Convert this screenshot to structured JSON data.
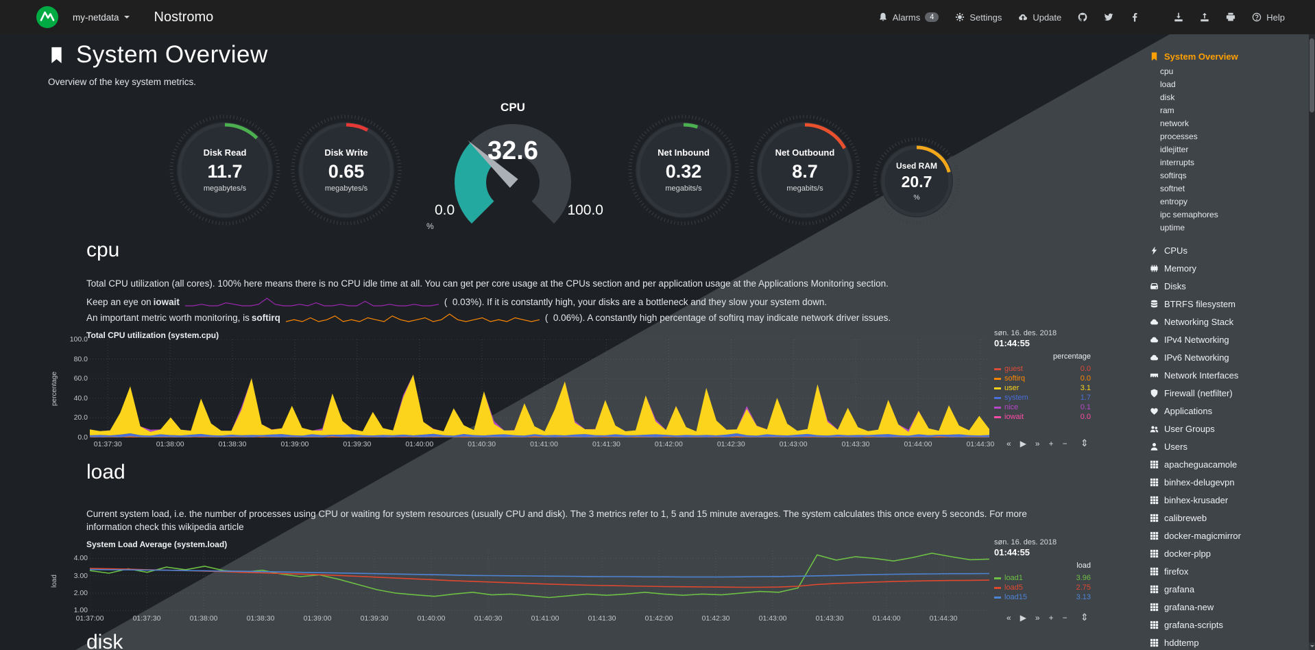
{
  "navbar": {
    "hostname": "my-netdata",
    "brand": "Nostromo",
    "alarms_label": "Alarms",
    "alarms_count": "4",
    "settings_label": "Settings",
    "update_label": "Update",
    "help_label": "Help"
  },
  "page": {
    "title": "System Overview",
    "subtitle": "Overview of the key system metrics."
  },
  "gauges": {
    "disk_read": {
      "title": "Disk Read",
      "value": "11.7",
      "unit": "megabytes/s",
      "color": "#4caf50",
      "frac": 0.125
    },
    "disk_write": {
      "title": "Disk Write",
      "value": "0.65",
      "unit": "megabytes/s",
      "color": "#e53935",
      "frac": 0.078
    },
    "cpu": {
      "title": "CPU",
      "value": "32.6",
      "min": "0.0",
      "max": "100.0",
      "unit": "%",
      "color": "#23a9a0",
      "frac": 0.326
    },
    "net_inbound": {
      "title": "Net Inbound",
      "value": "0.32",
      "unit": "megabits/s",
      "color": "#4caf50",
      "frac": 0.05
    },
    "net_outbound": {
      "title": "Net Outbound",
      "value": "8.7",
      "unit": "megabits/s",
      "color": "#e8502e",
      "frac": 0.17
    },
    "used_ram": {
      "title": "Used RAM",
      "value": "20.7",
      "unit": "%",
      "color": "#f3a71b",
      "frac": 0.207
    }
  },
  "cpu_section": {
    "heading": "cpu",
    "description": "Total CPU utilization (all cores). 100% here means there is no CPU idle time at all. You can get per core usage at the CPUs section and per application usage at the Applications Monitoring section.",
    "iowait_prefix": "Keep an eye on",
    "iowait_word": "iowait",
    "iowait_suffix": "(  0.03%). If it is constantly high, your disks are a bottleneck and they slow your system down.",
    "softirq_prefix": "An important metric worth monitoring, is",
    "softirq_word": "softirq",
    "softirq_suffix": "(  0.06%). A constantly high percentage of softirq may indicate network driver issues."
  },
  "load_section": {
    "heading": "load",
    "description": "Current system load, i.e. the number of processes using CPU or waiting for system resources (usually CPU and disk). The 3 metrics refer to 1, 5 and 15 minute averages. The system calculates this once every 5 seconds. For more information check ",
    "link_text": "this wikipedia article"
  },
  "disk_section": {
    "heading": "disk"
  },
  "chart_controls": {
    "skip_back": "«",
    "play": "▶",
    "skip_forward": "»",
    "zoom_in": "+",
    "zoom_out": "−",
    "resize": "⇕"
  },
  "chart_data": [
    {
      "id": "system_cpu",
      "type": "area",
      "title": "Total CPU utilization (system.cpu)",
      "date": "søn. 16. des. 2018",
      "time": "01:44:55",
      "legend_header": "percentage",
      "ylabel": "percentage",
      "ylim": [
        0,
        100
      ],
      "yticks": [
        0,
        20,
        40,
        60,
        80,
        100
      ],
      "ytick_labels": [
        "0.0",
        "20.0",
        "40.0",
        "60.0",
        "80.0",
        "100.0"
      ],
      "xtick_labels": [
        "01:37:30",
        "01:38:00",
        "01:38:30",
        "01:39:00",
        "01:39:30",
        "01:40:00",
        "01:40:30",
        "01:41:00",
        "01:41:30",
        "01:42:00",
        "01:42:30",
        "01:43:00",
        "01:43:30",
        "01:44:00",
        "01:44:30"
      ],
      "xtick_range": [
        0.02,
        0.99
      ],
      "stack_order": [
        "guest",
        "softirq",
        "system",
        "user",
        "nice",
        "iowait"
      ],
      "series": [
        {
          "name": "guest",
          "value": "0.0",
          "color": "#dd4b39",
          "values": [
            0,
            0,
            0,
            0,
            0.5,
            0,
            0,
            0,
            0,
            0,
            0,
            0.4,
            0,
            0,
            0,
            0,
            0,
            0.3,
            0,
            0
          ]
        },
        {
          "name": "softirq",
          "value": "0.0",
          "color": "#ff8700",
          "values": [
            0.4,
            0.3,
            0.5,
            0.3,
            0.6,
            0.4,
            0.3,
            0.5,
            0.4,
            0.3
          ]
        },
        {
          "name": "user",
          "value": "3.1",
          "color": "#fbd41b",
          "values": [
            6,
            4,
            5,
            22,
            48,
            9,
            4,
            5,
            18,
            6,
            4,
            36,
            12,
            5,
            4,
            26,
            58,
            11,
            5,
            6,
            30,
            8,
            4,
            5,
            42,
            14,
            5,
            4,
            24,
            7,
            5,
            38,
            62,
            13,
            5,
            4,
            28,
            9,
            5,
            45,
            11,
            4,
            5,
            33,
            8,
            4,
            26,
            55,
            12,
            5,
            6,
            36,
            9,
            4,
            5,
            40,
            13,
            5,
            30,
            8,
            4,
            48,
            15,
            5,
            4,
            27,
            10,
            5,
            38,
            12,
            4,
            5,
            52,
            14,
            5,
            28,
            8,
            4,
            5,
            35,
            11,
            4,
            24,
            7,
            4,
            30,
            9,
            5,
            20,
            6
          ]
        },
        {
          "name": "system",
          "value": "1.7",
          "color": "#4a6fd8",
          "values": [
            1.8,
            2.2,
            1.6,
            2.6,
            3.1,
            1.9,
            1.5,
            2.7,
            2.0,
            1.7,
            2.4,
            2.9,
            1.8,
            1.6,
            2.2
          ]
        },
        {
          "name": "nice",
          "value": "0.1",
          "color": "#b647c8",
          "values": [
            0,
            0,
            0,
            0,
            0,
            0,
            2.2,
            0,
            0,
            0,
            0,
            0,
            0,
            0,
            0,
            2.8,
            0,
            0,
            0,
            0,
            0,
            0,
            0,
            1.8,
            0
          ]
        },
        {
          "name": "iowait",
          "value": "0.0",
          "color": "#ff4ca7",
          "values": [
            0,
            0,
            0.2,
            0,
            0,
            0,
            0,
            0
          ]
        }
      ]
    },
    {
      "id": "system_load",
      "type": "line",
      "title": "System Load Average (system.load)",
      "date": "søn. 16. des. 2018",
      "time": "01:44:55",
      "legend_header": "load",
      "ylabel": "load",
      "ylim": [
        0.9,
        4.45
      ],
      "yticks": [
        1,
        2,
        3,
        4
      ],
      "ytick_labels": [
        "1.00",
        "2.00",
        "3.00",
        "4.00"
      ],
      "xtick_labels": [
        "01:37:00",
        "01:37:30",
        "01:38:00",
        "01:38:30",
        "01:39:00",
        "01:39:30",
        "01:40:00",
        "01:40:30",
        "01:41:00",
        "01:41:30",
        "01:42:00",
        "01:42:30",
        "01:43:00",
        "01:43:30",
        "01:44:00",
        "01:44:30"
      ],
      "xtick_range": [
        0.0,
        0.949
      ],
      "series": [
        {
          "name": "load1",
          "value": "3.96",
          "color": "#6dc043",
          "values": [
            3.3,
            3.15,
            3.4,
            3.2,
            3.5,
            3.35,
            3.55,
            3.3,
            3.2,
            3.32,
            3.1,
            2.95,
            3.05,
            2.8,
            2.5,
            2.2,
            2.0,
            1.9,
            1.82,
            1.95,
            2.05,
            1.9,
            1.95,
            1.85,
            1.75,
            1.85,
            1.95,
            1.88,
            1.95,
            2.05,
            1.95,
            1.88,
            1.95,
            1.9,
            2.0,
            2.1,
            2.05,
            2.3,
            4.2,
            3.9,
            4.1,
            4.0,
            3.85,
            4.05,
            4.3,
            4.1,
            3.92,
            3.96
          ]
        },
        {
          "name": "load5",
          "value": "2.75",
          "color": "#e0482e",
          "values": [
            3.42,
            3.4,
            3.38,
            3.35,
            3.32,
            3.3,
            3.27,
            3.24,
            3.2,
            3.17,
            3.13,
            3.1,
            3.06,
            3.02,
            2.97,
            2.92,
            2.87,
            2.82,
            2.77,
            2.72,
            2.68,
            2.64,
            2.6,
            2.56,
            2.52,
            2.49,
            2.46,
            2.44,
            2.42,
            2.4,
            2.38,
            2.37,
            2.36,
            2.35,
            2.34,
            2.34,
            2.35,
            2.4,
            2.5,
            2.56,
            2.6,
            2.64,
            2.67,
            2.7,
            2.72,
            2.73,
            2.74,
            2.75
          ]
        },
        {
          "name": "load15",
          "value": "3.13",
          "color": "#4e84d4",
          "values": [
            3.36,
            3.35,
            3.34,
            3.33,
            3.32,
            3.3,
            3.29,
            3.27,
            3.26,
            3.24,
            3.22,
            3.2,
            3.18,
            3.16,
            3.14,
            3.12,
            3.1,
            3.08,
            3.06,
            3.04,
            3.02,
            3.01,
            3.0,
            2.99,
            2.98,
            2.97,
            2.96,
            2.95,
            2.95,
            2.94,
            2.94,
            2.93,
            2.93,
            2.93,
            2.94,
            2.95,
            2.96,
            2.98,
            3.0,
            3.02,
            3.05,
            3.07,
            3.09,
            3.1,
            3.11,
            3.12,
            3.12,
            3.13
          ]
        }
      ]
    },
    {
      "id": "iowait_sparkline",
      "type": "sparkline",
      "color": "#9c27b0",
      "values": [
        1,
        1,
        2,
        1,
        1,
        3,
        2,
        1,
        1,
        2,
        6,
        2,
        1,
        1,
        2,
        1,
        3,
        1,
        1,
        2,
        1,
        1,
        4,
        1,
        1,
        2,
        1,
        1,
        2,
        1,
        1,
        2
      ]
    },
    {
      "id": "softirq_sparkline",
      "type": "sparkline",
      "color": "#ff8700",
      "values": [
        2,
        3,
        2,
        4,
        2,
        3,
        5,
        2,
        3,
        2,
        4,
        3,
        2,
        5,
        3,
        2,
        3,
        4,
        2,
        3,
        6,
        3,
        2,
        3,
        4,
        2,
        3,
        2,
        4,
        3,
        2,
        3
      ]
    }
  ],
  "sidebar": {
    "items": [
      {
        "label": "System Overview",
        "icon": "bookmark",
        "active": true,
        "level": 0
      },
      {
        "label": "cpu",
        "level": 1
      },
      {
        "label": "load",
        "level": 1
      },
      {
        "label": "disk",
        "level": 1
      },
      {
        "label": "ram",
        "level": 1
      },
      {
        "label": "network",
        "level": 1
      },
      {
        "label": "processes",
        "level": 1
      },
      {
        "label": "idlejitter",
        "level": 1
      },
      {
        "label": "interrupts",
        "level": 1
      },
      {
        "label": "softirqs",
        "level": 1
      },
      {
        "label": "softnet",
        "level": 1
      },
      {
        "label": "entropy",
        "level": 1
      },
      {
        "label": "ipc semaphores",
        "level": 1
      },
      {
        "label": "uptime",
        "level": 1
      },
      {
        "label": "CPUs",
        "icon": "bolt",
        "level": 0
      },
      {
        "label": "Memory",
        "icon": "memory",
        "level": 0
      },
      {
        "label": "Disks",
        "icon": "hdd",
        "level": 0
      },
      {
        "label": "BTRFS filesystem",
        "icon": "database",
        "level": 0
      },
      {
        "label": "Networking Stack",
        "icon": "cloud",
        "level": 0
      },
      {
        "label": "IPv4 Networking",
        "icon": "cloud",
        "level": 0
      },
      {
        "label": "IPv6 Networking",
        "icon": "cloud",
        "level": 0
      },
      {
        "label": "Network Interfaces",
        "icon": "port",
        "level": 0
      },
      {
        "label": "Firewall (netfilter)",
        "icon": "shield",
        "level": 0
      },
      {
        "label": "Applications",
        "icon": "heartbeat",
        "level": 0
      },
      {
        "label": "User Groups",
        "icon": "users",
        "level": 0
      },
      {
        "label": "Users",
        "icon": "user",
        "level": 0
      },
      {
        "label": "apacheguacamole",
        "icon": "grid",
        "level": 0
      },
      {
        "label": "binhex-delugevpn",
        "icon": "grid",
        "level": 0
      },
      {
        "label": "binhex-krusader",
        "icon": "grid",
        "level": 0
      },
      {
        "label": "calibreweb",
        "icon": "grid",
        "level": 0
      },
      {
        "label": "docker-magicmirror",
        "icon": "grid",
        "level": 0
      },
      {
        "label": "docker-plpp",
        "icon": "grid",
        "level": 0
      },
      {
        "label": "firefox",
        "icon": "grid",
        "level": 0
      },
      {
        "label": "grafana",
        "icon": "grid",
        "level": 0
      },
      {
        "label": "grafana-new",
        "icon": "grid",
        "level": 0
      },
      {
        "label": "grafana-scripts",
        "icon": "grid",
        "level": 0
      },
      {
        "label": "hddtemp",
        "icon": "grid",
        "level": 0
      }
    ]
  }
}
